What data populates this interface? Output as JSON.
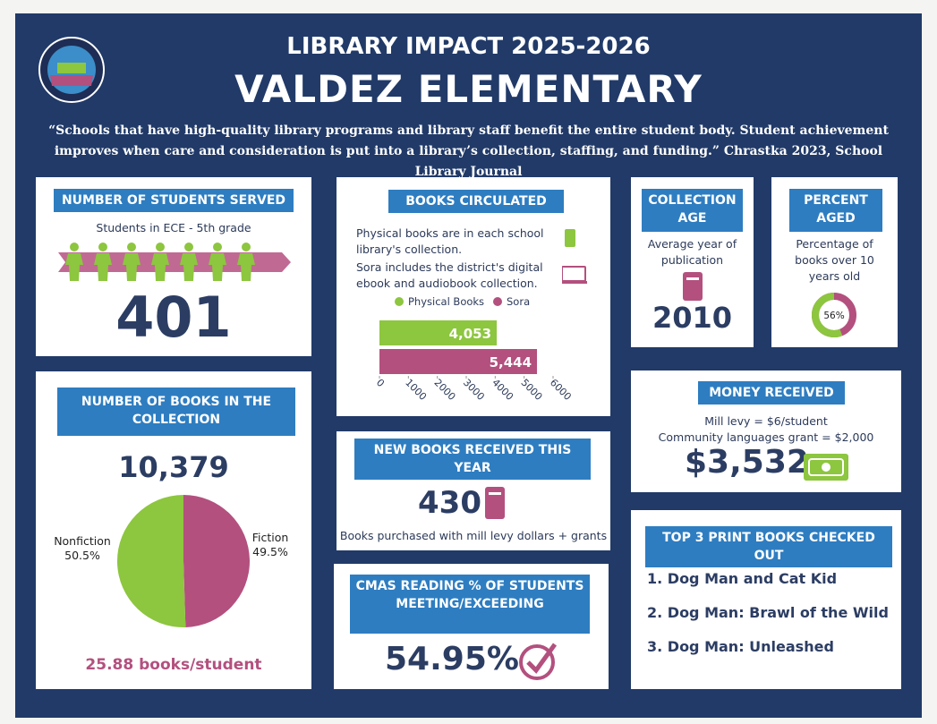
{
  "header": {
    "title": "LIBRARY IMPACT 2025-2026",
    "school": "VALDEZ ELEMENTARY",
    "quote": "“Schools that have high-quality library programs and library staff benefit the entire student body. Student achievement improves when care and consideration is put into a library’s collection, staffing, and funding.” Chrastka 2023, School Library Journal"
  },
  "students": {
    "heading": "NUMBER OF STUDENTS SERVED",
    "subtitle": "Students in ECE - 5th grade",
    "value": "401"
  },
  "collection": {
    "heading": "NUMBER OF BOOKS IN THE COLLECTION",
    "total": "10,379",
    "per_student": "25.88 books/student",
    "chart": {
      "type": "pie",
      "categories": [
        "Nonfiction",
        "Fiction"
      ],
      "values": [
        50.5,
        49.5
      ],
      "value_labels": [
        "50.5%",
        "49.5%"
      ],
      "colors": [
        "#8dc63f",
        "#b3507e"
      ]
    }
  },
  "circulation": {
    "heading": "BOOKS CIRCULATED",
    "physical_note": "Physical books are in each school library's collection.",
    "sora_note": "Sora includes the district's digital ebook and audiobook collection.",
    "chart": {
      "type": "bar",
      "series": [
        {
          "name": "Physical Books",
          "color": "#8dc63f",
          "values": [
            4053
          ],
          "value_labels": [
            "4,053"
          ]
        },
        {
          "name": "Sora",
          "color": "#b3507e",
          "values": [
            5444
          ],
          "value_labels": [
            "5,444"
          ]
        }
      ],
      "xlim": [
        0,
        6000
      ],
      "xticks": [
        0,
        1000,
        2000,
        3000,
        4000,
        5000,
        6000
      ]
    }
  },
  "new_books": {
    "heading": "NEW BOOKS RECEIVED THIS YEAR",
    "value": "430",
    "note": "Books purchased with mill levy dollars + grants"
  },
  "cmas": {
    "heading": "CMAS READING % OF STUDENTS MEETING/EXCEEDING",
    "value": "54.95%"
  },
  "collection_age": {
    "heading": "COLLECTION AGE",
    "note": "Average year of publication",
    "value": "2010"
  },
  "percent_aged": {
    "heading": "PERCENT AGED",
    "note": "Percentage of books over 10 years old",
    "chart": {
      "type": "donut",
      "values": [
        56
      ],
      "value_labels": [
        "56%"
      ],
      "colors": [
        "#8dc63f",
        "#b3507e"
      ]
    }
  },
  "money": {
    "heading": "MONEY RECEIVED",
    "line1": "Mill levy = $6/student",
    "line2": "Community languages grant = $2,000",
    "value": "$3,532"
  },
  "top_books": {
    "heading": "TOP 3 PRINT BOOKS CHECKED OUT",
    "items": [
      "1. Dog Man and Cat Kid",
      "2. Dog Man: Brawl of the Wild",
      "3. Dog Man: Unleashed"
    ]
  }
}
